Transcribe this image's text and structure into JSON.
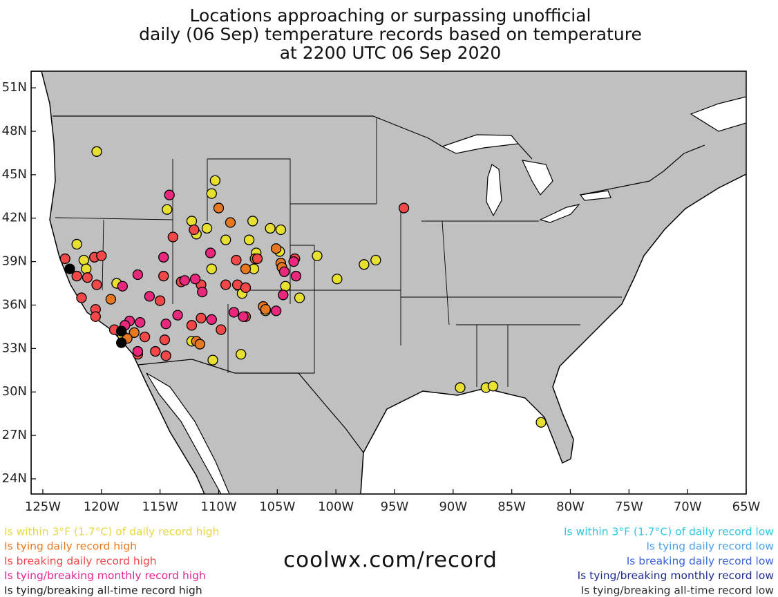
{
  "chart_data": {
    "type": "scatter",
    "title": [
      "Locations approaching or surpassing unofficial",
      "daily (06 Sep) temperature records based on temperature",
      "at 2200 UTC 06 Sep 2020"
    ],
    "footer": "coolwx.com/record",
    "xlim": [
      -126,
      -65
    ],
    "ylim": [
      22.95,
      52.15
    ],
    "xticks": [
      {
        "value": -125,
        "label": "125W"
      },
      {
        "value": -120,
        "label": "120W"
      },
      {
        "value": -115,
        "label": "115W"
      },
      {
        "value": -110,
        "label": "110W"
      },
      {
        "value": -105,
        "label": "105W"
      },
      {
        "value": -100,
        "label": "100W"
      },
      {
        "value": -95,
        "label": "95W"
      },
      {
        "value": -90,
        "label": "90W"
      },
      {
        "value": -85,
        "label": "85W"
      },
      {
        "value": -80,
        "label": "80W"
      },
      {
        "value": -75,
        "label": "75W"
      },
      {
        "value": -70,
        "label": "70W"
      },
      {
        "value": -65,
        "label": "65W"
      }
    ],
    "yticks": [
      {
        "value": 24,
        "label": "24N"
      },
      {
        "value": 27,
        "label": "27N"
      },
      {
        "value": 30,
        "label": "30N"
      },
      {
        "value": 33,
        "label": "33N"
      },
      {
        "value": 36,
        "label": "36N"
      },
      {
        "value": 39,
        "label": "39N"
      },
      {
        "value": 42,
        "label": "42N"
      },
      {
        "value": 45,
        "label": "45N"
      },
      {
        "value": 48,
        "label": "48N"
      },
      {
        "value": 51,
        "label": "51N"
      }
    ],
    "series": [
      {
        "name": "Is within 3°F (1.7°C) of daily record high",
        "color": "#e8e030",
        "text_color": "#e8d840",
        "x": [
          -120.4,
          -122.1,
          -121.5,
          -121.3,
          -118.7,
          -114.4,
          -110.6,
          -110.3,
          -112.3,
          -111.0,
          -111.9,
          -109.4,
          -110.6,
          -107.4,
          -107.1,
          -105.6,
          -104.7,
          -106.8,
          -107.0,
          -104.8,
          -104.3,
          -108.0,
          -106.0,
          -108.1,
          -110.5,
          -112.3,
          -103.1,
          -101.6,
          -99.9,
          -97.6,
          -96.6,
          -89.4,
          -87.2,
          -86.6,
          -82.5,
          -118.2
        ],
        "y": [
          46.6,
          40.2,
          39.1,
          38.5,
          37.5,
          42.6,
          43.7,
          44.6,
          41.8,
          41.3,
          40.9,
          40.5,
          38.5,
          40.5,
          41.8,
          41.3,
          41.2,
          39.6,
          38.5,
          39.7,
          37.3,
          36.8,
          35.6,
          32.6,
          32.2,
          33.5,
          36.5,
          39.4,
          37.8,
          38.8,
          39.1,
          30.3,
          30.3,
          30.4,
          27.9,
          33.9
        ]
      },
      {
        "name": "Is tying daily record high",
        "color": "#e87820",
        "text_color": "#e87820",
        "x": [
          -110.0,
          -109.0,
          -106.9,
          -104.7,
          -104.6,
          -107.7,
          -106.2,
          -106.0,
          -119.2,
          -117.2,
          -117.8,
          -111.9,
          -111.6,
          -105.1
        ],
        "y": [
          42.7,
          41.7,
          39.2,
          38.9,
          38.6,
          38.5,
          35.9,
          35.7,
          36.4,
          34.1,
          33.7,
          33.5,
          33.3,
          39.9
        ]
      },
      {
        "name": "Is breaking daily record high",
        "color": "#f04848",
        "text_color": "#f04848",
        "x": [
          -123.1,
          -120.6,
          -120.0,
          -122.1,
          -121.2,
          -120.4,
          -121.7,
          -120.5,
          -120.5,
          -118.9,
          -113.9,
          -114.7,
          -112.1,
          -111.5,
          -112.3,
          -111.5,
          -109.8,
          -109.4,
          -108.4,
          -107.7,
          -108.5,
          -106.7,
          -107.7,
          -103.5,
          -94.2,
          -116.9,
          -116.3,
          -115.4,
          -114.5,
          -114.6,
          -113.2,
          -115.0
        ],
        "y": [
          39.2,
          39.3,
          39.4,
          38.0,
          37.9,
          37.4,
          36.5,
          35.7,
          35.2,
          34.3,
          40.7,
          38.0,
          41.2,
          37.4,
          34.6,
          35.1,
          34.3,
          37.4,
          37.4,
          37.2,
          39.1,
          39.2,
          35.2,
          39.2,
          42.7,
          32.6,
          33.8,
          32.8,
          32.5,
          33.6,
          37.6,
          36.3
        ]
      },
      {
        "name": "Is tying/breaking monthly record high",
        "color": "#e8287c",
        "text_color": "#e02890",
        "x": [
          -114.2,
          -114.7,
          -116.9,
          -118.2,
          -115.9,
          -113.5,
          -114.5,
          -117.6,
          -118.0,
          -116.7,
          -112.9,
          -112.0,
          -111.4,
          -110.7,
          -110.6,
          -108.7,
          -107.9,
          -104.4,
          -103.6,
          -103.4,
          -104.5,
          -105.1,
          -116.9
        ],
        "y": [
          43.6,
          39.3,
          38.1,
          37.3,
          36.6,
          35.3,
          34.7,
          34.9,
          34.6,
          34.8,
          37.7,
          37.8,
          36.9,
          39.6,
          35.0,
          35.5,
          35.2,
          38.3,
          39.0,
          38.0,
          36.7,
          35.6,
          32.8
        ]
      },
      {
        "name": "Is tying/breaking all-time record high",
        "color": "#000000",
        "text_color": "#202020",
        "x": [
          -122.7,
          -118.3,
          -118.3
        ],
        "y": [
          38.5,
          34.2,
          33.4
        ]
      },
      {
        "name": "Is within 3°F (1.7°C) of daily record low",
        "color": "#30c8e0",
        "text_color": "#30c8e0",
        "x": [],
        "y": []
      },
      {
        "name": "Is tying daily record low",
        "color": "#4ca0e8",
        "text_color": "#4ca0e8",
        "x": [],
        "y": []
      },
      {
        "name": "Is breaking daily record low",
        "color": "#3c64d8",
        "text_color": "#3c64d8",
        "x": [],
        "y": []
      },
      {
        "name": "Is tying/breaking monthly record low",
        "color": "#202c90",
        "text_color": "#202c90",
        "x": [],
        "y": []
      },
      {
        "name": "Is tying/breaking all-time record low",
        "color": "#303030",
        "text_color": "#303030",
        "x": [],
        "y": []
      }
    ]
  }
}
